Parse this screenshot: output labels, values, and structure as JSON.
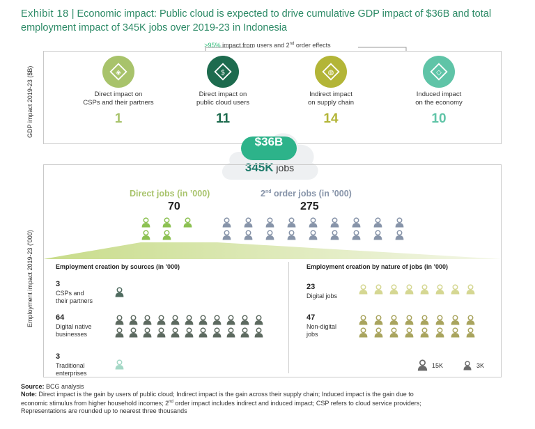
{
  "title": {
    "exhibit": "Exhibit 18",
    "text": "Economic impact: Public cloud is expected to drive cumulative GDP impact of $36B and total employment impact of 345K jobs over 2019-23 in Indonesia"
  },
  "header_note": {
    "pct": ">95%",
    "text_a": " impact from users and 2",
    "sup": "nd",
    "text_b": " order effects"
  },
  "colors": {
    "teal": "#2c8a66",
    "light_green": "#a8c36b",
    "dark_green": "#1d7a6a",
    "grey_blue": "#8794a9",
    "olive": "#b9b36a",
    "aqua": "#5fc4a7"
  },
  "gdp_axis_label": "GDP impact 2019-23 ($B)",
  "emp_axis_label": "Employment impact 2019-23 ('000)",
  "chart_data": [
    {
      "type": "table",
      "title": "GDP impact 2019-23 ($B)",
      "categories": [
        "Direct impact on CSPs and their partners",
        "Direct impact on public cloud users",
        "Indirect impact on supply chain",
        "Induced impact on the economy"
      ],
      "values": [
        1,
        11,
        14,
        10
      ],
      "total": "$36B"
    },
    {
      "type": "table",
      "title": "Employment impact 2019-23 ('000)",
      "categories": [
        "Direct jobs",
        "2nd order jobs"
      ],
      "values": [
        70,
        275
      ],
      "total": "345K jobs"
    },
    {
      "type": "table",
      "title": "Employment creation by sources (in '000)",
      "categories": [
        "CSPs and their partners",
        "Digital native businesses",
        "Traditional enterprises"
      ],
      "values": [
        3,
        64,
        3
      ]
    },
    {
      "type": "table",
      "title": "Employment creation by nature of jobs (in '000)",
      "categories": [
        "Digital jobs",
        "Non-digital jobs"
      ],
      "values": [
        23,
        47
      ]
    }
  ],
  "gdp": {
    "items": [
      {
        "label1": "Direct impact on",
        "label2": "CSPs and their partners",
        "value": "1",
        "icon": "chip-icon",
        "color": "#a8c36b"
      },
      {
        "label1": "Direct impact on",
        "label2": "public cloud users",
        "value": "11",
        "icon": "dollar-server-icon",
        "color": "#1d6b4e"
      },
      {
        "label1": "Indirect impact",
        "label2": "on supply chain",
        "value": "14",
        "icon": "globe-icon",
        "color": "#b3b537"
      },
      {
        "label1": "Induced impact",
        "label2": "on the economy",
        "value": "10",
        "icon": "stack-icon",
        "color": "#5fc4a7"
      }
    ],
    "total": "$36B"
  },
  "employment": {
    "total_value": "345K",
    "total_unit": " jobs",
    "direct_title": "Direct jobs (in ’000)",
    "direct_value": "70",
    "order_title_a": "2",
    "order_sup": "nd",
    "order_title_b": " order jobs (in ’000)",
    "order_value": "275",
    "direct_icons": 5,
    "order_icons": 18
  },
  "sources": {
    "title": "Employment creation by sources (in ’000)",
    "rows": [
      {
        "value": "3",
        "label1": "CSPs and",
        "label2": "their partners",
        "icons": 1,
        "color": "#4f6b5f"
      },
      {
        "value": "64",
        "label1": "Digital native",
        "label2": "businesses",
        "icons": 22,
        "color": "#5d6a60"
      },
      {
        "value": "3",
        "label1": "Traditional",
        "label2": "enterprises",
        "icons": 1,
        "color": "#a4d8c6"
      }
    ]
  },
  "nature": {
    "title": "Employment creation by nature of jobs (in ’000)",
    "rows": [
      {
        "value": "23",
        "label1": "Digital jobs",
        "label2": "",
        "icons": 8,
        "color": "#d5d792"
      },
      {
        "value": "47",
        "label1": "Non-digital",
        "label2": "jobs",
        "icons": 16,
        "color": "#a9a45e"
      }
    ]
  },
  "legend": {
    "big": "15K",
    "small": "3K"
  },
  "source_note": {
    "source_label": "Source:",
    "source_text": " BCG analysis",
    "note_label": "Note:",
    "line1": " Direct impact is the gain by users of public cloud; Indirect impact is the gain across their supply chain; Induced impact is the gain due to",
    "line2a": "economic stimulus from higher household incomes; 2",
    "line2sup": "nd",
    "line2b": " order impact includes indirect and induced impact; CSP refers to cloud service providers;",
    "line3": "Representations are rounded up to nearest three thousands"
  }
}
